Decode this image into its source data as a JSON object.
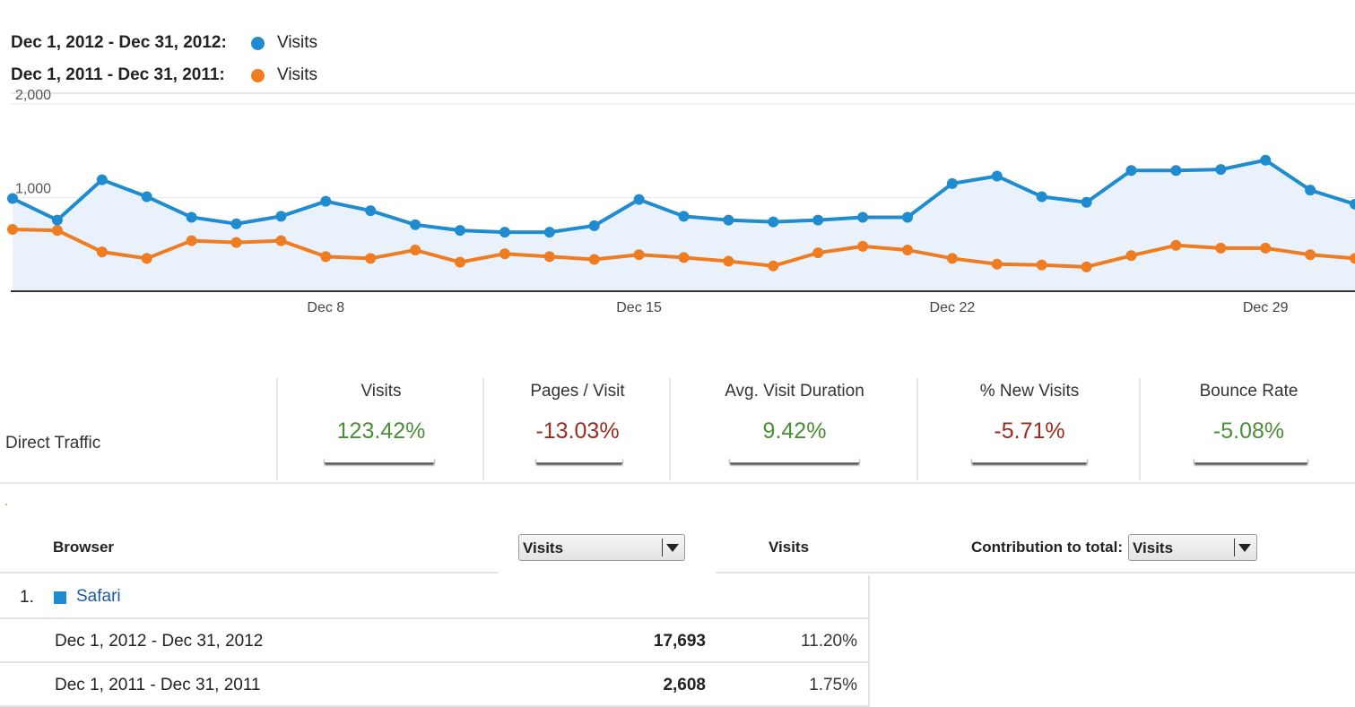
{
  "legend": [
    {
      "range": "Dec 1, 2012 - Dec 31, 2012:",
      "series": "Visits",
      "color": "#1f8ccf"
    },
    {
      "range": "Dec 1, 2011 - Dec 31, 2011:",
      "series": "Visits",
      "color": "#f07c22"
    }
  ],
  "chart_data": {
    "type": "line",
    "x": [
      "Dec 1",
      "Dec 2",
      "Dec 3",
      "Dec 4",
      "Dec 5",
      "Dec 6",
      "Dec 7",
      "Dec 8",
      "Dec 9",
      "Dec 10",
      "Dec 11",
      "Dec 12",
      "Dec 13",
      "Dec 14",
      "Dec 15",
      "Dec 16",
      "Dec 17",
      "Dec 18",
      "Dec 19",
      "Dec 20",
      "Dec 21",
      "Dec 22",
      "Dec 23",
      "Dec 24",
      "Dec 25",
      "Dec 26",
      "Dec 27",
      "Dec 28",
      "Dec 29",
      "Dec 30",
      "Dec 31"
    ],
    "x_tick_labels": [
      "Dec 8",
      "Dec 15",
      "Dec 22",
      "Dec 29"
    ],
    "y_tick_labels": [
      "2,000",
      "1,000"
    ],
    "ylim": [
      0,
      2000
    ],
    "grid": true,
    "series": [
      {
        "name": "Visits (Dec 1, 2012 - Dec 31, 2012)",
        "color": "#1f8ccf",
        "fill": true,
        "values": [
          990,
          760,
          1190,
          1010,
          790,
          720,
          800,
          960,
          860,
          710,
          650,
          630,
          630,
          700,
          980,
          800,
          760,
          740,
          760,
          790,
          790,
          1150,
          1230,
          1010,
          950,
          1290,
          1290,
          1300,
          1400,
          1080,
          930
        ]
      },
      {
        "name": "Visits (Dec 1, 2011 - Dec 31, 2011)",
        "color": "#f07c22",
        "fill": false,
        "values": [
          660,
          650,
          420,
          350,
          540,
          520,
          540,
          370,
          350,
          440,
          310,
          400,
          370,
          340,
          390,
          360,
          320,
          270,
          410,
          480,
          440,
          350,
          290,
          280,
          260,
          380,
          490,
          460,
          460,
          390,
          350
        ]
      }
    ]
  },
  "summary": {
    "segment_label": "Direct Traffic",
    "metrics": [
      {
        "name": "Visits",
        "value": "123.42%",
        "trend": "pos"
      },
      {
        "name": "Pages / Visit",
        "value": "-13.03%",
        "trend": "neg"
      },
      {
        "name": "Avg. Visit Duration",
        "value": "9.42%",
        "trend": "pos"
      },
      {
        "name": "% New Visits",
        "value": "-5.71%",
        "trend": "neg"
      },
      {
        "name": "Bounce Rate",
        "value": "-5.08%",
        "trend": "pos"
      }
    ]
  },
  "table": {
    "col_browser": "Browser",
    "select_primary": "Visits",
    "col_visits": "Visits",
    "contribution_label": "Contribution to total:",
    "select_contribution": "Visits",
    "rows": [
      {
        "index": "1.",
        "browser": "Safari",
        "swatch_color": "#1f8ccf",
        "periods": [
          {
            "range": "Dec 1, 2012 - Dec 31, 2012",
            "visits": "17,693",
            "pct": "11.20%"
          },
          {
            "range": "Dec 1, 2011 - Dec 31, 2011",
            "visits": "2,608",
            "pct": "1.75%"
          }
        ]
      }
    ]
  }
}
